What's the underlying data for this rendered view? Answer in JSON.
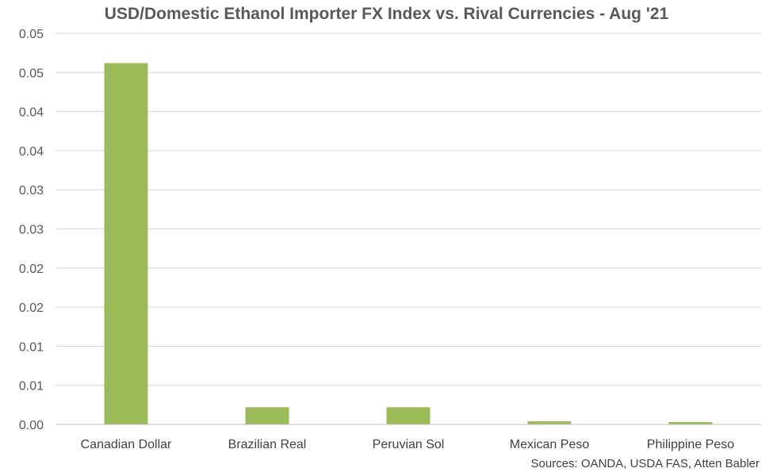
{
  "chart_data": {
    "type": "bar",
    "title": "USD/Domestic Ethanol Importer FX Index vs. Rival Currencies - Aug '21",
    "categories": [
      "Canadian Dollar",
      "Brazilian Real",
      "Peruvian Sol",
      "Mexican Peso",
      "Philippine Peso"
    ],
    "values": [
      0.0462,
      0.0022,
      0.0022,
      0.0004,
      0.0003
    ],
    "y_ticks": [
      "0.00",
      "0.01",
      "0.01",
      "0.02",
      "0.02",
      "0.03",
      "0.03",
      "0.04",
      "0.04",
      "0.05",
      "0.05"
    ],
    "ylim": [
      0,
      0.05
    ],
    "grid": true,
    "legend": "none",
    "bar_color": "#9bbb59",
    "source": "Sources: OANDA, USDA FAS, Atten Babler"
  }
}
